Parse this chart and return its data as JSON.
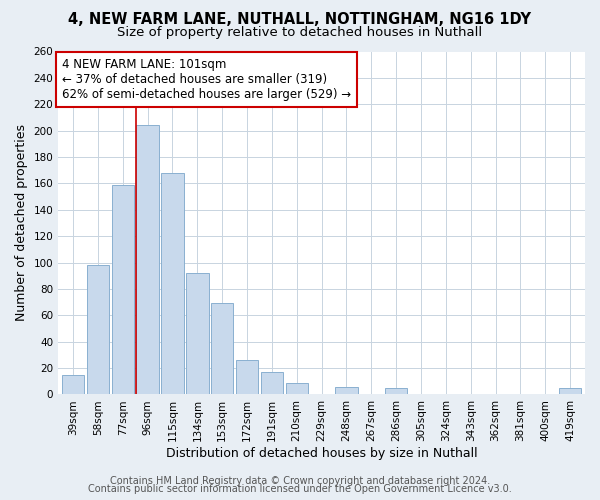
{
  "title": "4, NEW FARM LANE, NUTHALL, NOTTINGHAM, NG16 1DY",
  "subtitle": "Size of property relative to detached houses in Nuthall",
  "xlabel": "Distribution of detached houses by size in Nuthall",
  "ylabel": "Number of detached properties",
  "categories": [
    "39sqm",
    "58sqm",
    "77sqm",
    "96sqm",
    "115sqm",
    "134sqm",
    "153sqm",
    "172sqm",
    "191sqm",
    "210sqm",
    "229sqm",
    "248sqm",
    "267sqm",
    "286sqm",
    "305sqm",
    "324sqm",
    "343sqm",
    "362sqm",
    "381sqm",
    "400sqm",
    "419sqm"
  ],
  "values": [
    15,
    98,
    159,
    204,
    168,
    92,
    69,
    26,
    17,
    9,
    0,
    6,
    0,
    5,
    0,
    0,
    0,
    0,
    0,
    0,
    5
  ],
  "bar_color": "#c8d9ec",
  "bar_edge_color": "#8ab0d0",
  "highlight_bar_index": 3,
  "highlight_line_color": "#cc0000",
  "annotation_line1": "4 NEW FARM LANE: 101sqm",
  "annotation_line2": "← 37% of detached houses are smaller (319)",
  "annotation_line3": "62% of semi-detached houses are larger (529) →",
  "annotation_box_color": "#ffffff",
  "annotation_box_edge_color": "#cc0000",
  "ylim": [
    0,
    260
  ],
  "yticks": [
    0,
    20,
    40,
    60,
    80,
    100,
    120,
    140,
    160,
    180,
    200,
    220,
    240,
    260
  ],
  "footer_line1": "Contains HM Land Registry data © Crown copyright and database right 2024.",
  "footer_line2": "Contains public sector information licensed under the Open Government Licence v3.0.",
  "bg_color": "#e8eef4",
  "plot_bg_color": "#ffffff",
  "title_fontsize": 10.5,
  "subtitle_fontsize": 9.5,
  "axis_label_fontsize": 9,
  "tick_fontsize": 7.5,
  "annotation_fontsize": 8.5,
  "footer_fontsize": 7
}
